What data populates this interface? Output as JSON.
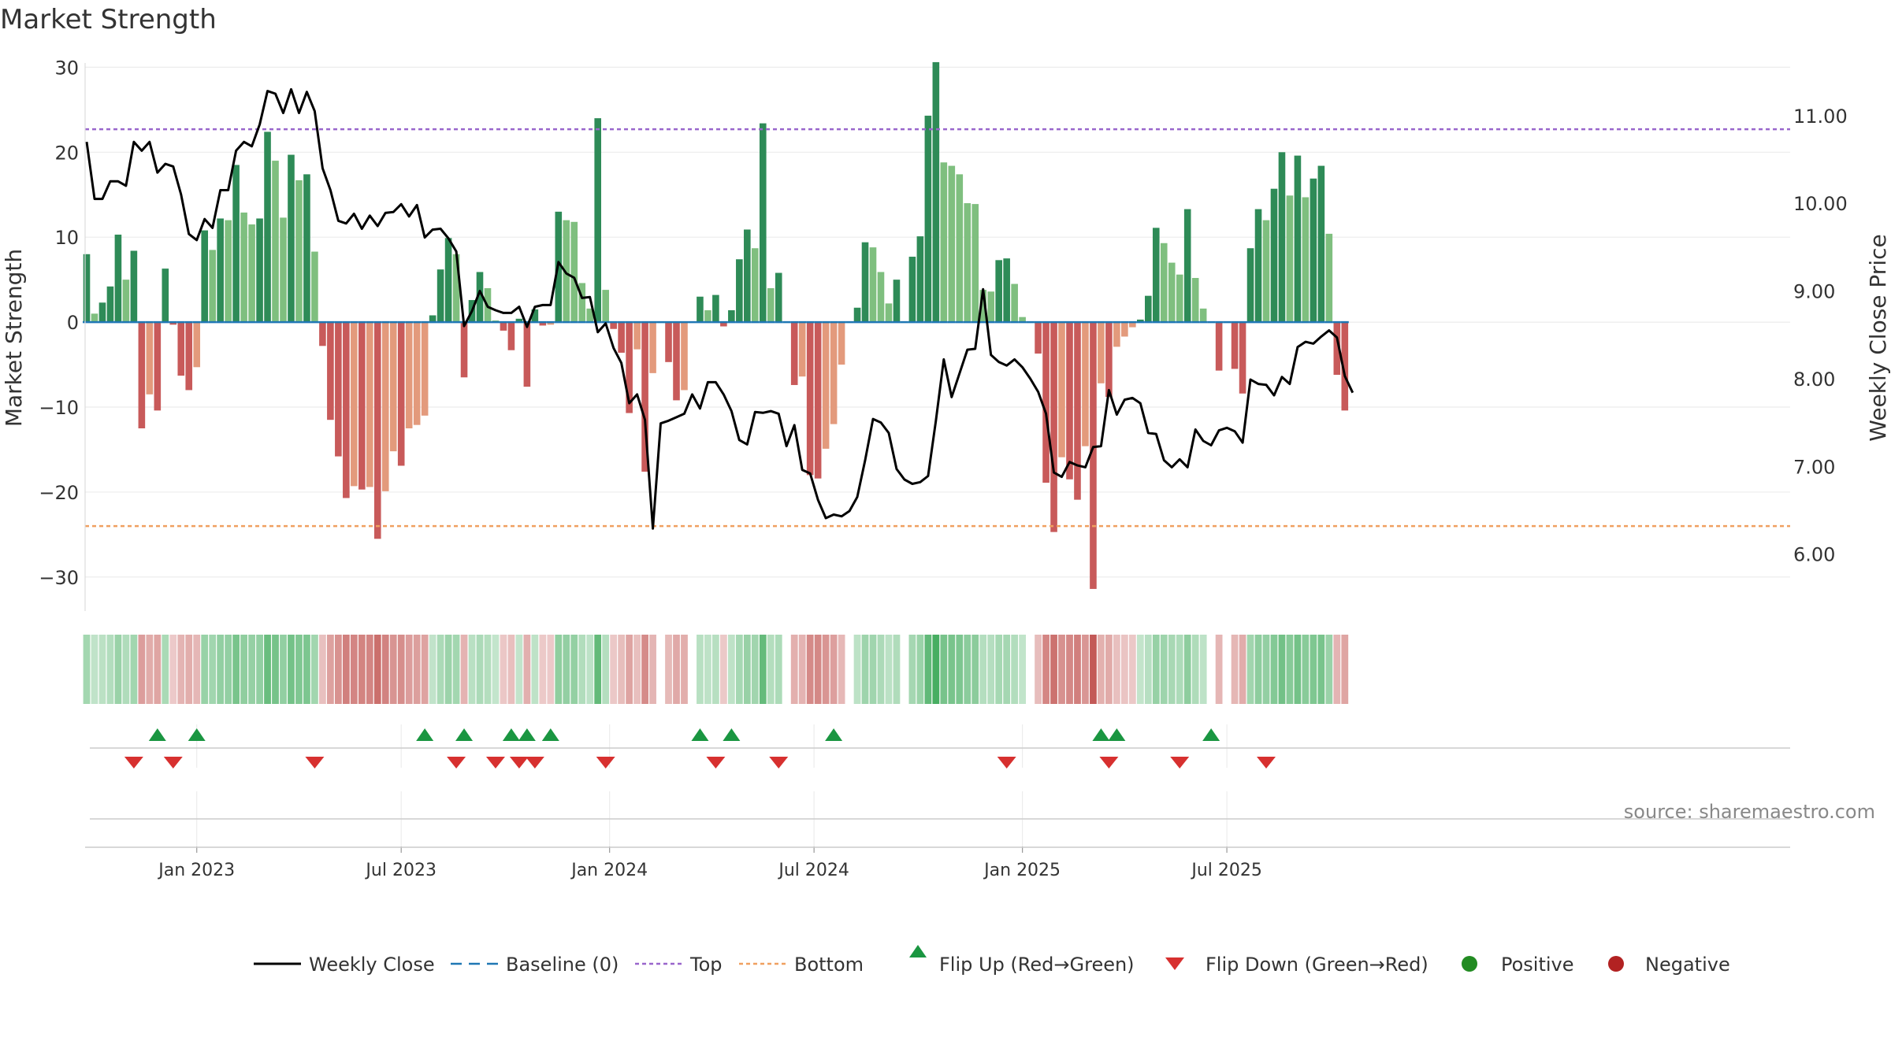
{
  "chart_data": {
    "type": "bar+line",
    "title": "Market Strength",
    "ylabel_left": "Market Strength",
    "ylabel_right": "Weekly Close Price",
    "source": "source: sharemaestro.com",
    "ylim_left": [
      -34,
      30.5
    ],
    "ylim_right": [
      5.35,
      11.6
    ],
    "yticks_left": [
      30,
      20,
      10,
      0,
      -10,
      -20,
      -30
    ],
    "yticks_left_labels": [
      "30",
      "20",
      "10",
      "0",
      "−10",
      "−20",
      "−30"
    ],
    "yticks_right": [
      11,
      10,
      9,
      8,
      7,
      6
    ],
    "yticks_right_labels": [
      "11.00",
      "10.00",
      "9.00",
      "8.00",
      "7.00",
      "6.00"
    ],
    "x_start_week": -14,
    "xticks": [
      {
        "week": 0,
        "label": "Jan 2023"
      },
      {
        "week": 26,
        "label": "Jul 2023"
      },
      {
        "week": 52.5,
        "label": "Jan 2024"
      },
      {
        "week": 78.5,
        "label": "Jul 2024"
      },
      {
        "week": 105,
        "label": "Jan 2025"
      },
      {
        "week": 131,
        "label": "Jul 2025"
      }
    ],
    "top_level": 22.7,
    "bottom_level": -24,
    "strength": [
      8,
      1,
      2.3,
      4.2,
      10.3,
      5,
      8.4,
      -12.5,
      -8.5,
      -10.4,
      6.3,
      -0.3,
      -6.3,
      -8,
      -5.3,
      10.8,
      8.5,
      12.2,
      12,
      18.5,
      12.9,
      11.5,
      12.2,
      22.4,
      19,
      12.3,
      19.7,
      16.7,
      17.4,
      8.3,
      -2.8,
      -11.5,
      -15.8,
      -20.7,
      -19.3,
      -19.7,
      -19.4,
      -25.5,
      -19.9,
      -15.2,
      -16.9,
      -12.5,
      -12.1,
      -11,
      0.8,
      6.2,
      9.9,
      8,
      -6.5,
      2.6,
      5.9,
      4,
      0.2,
      -1,
      -3.3,
      0.4,
      -7.6,
      1.5,
      -0.4,
      -0.3,
      13,
      12,
      11.8,
      4.6,
      1.6,
      24,
      3.8,
      -0.8,
      -3.6,
      -10.7,
      -3.2,
      -17.6,
      -6,
      0,
      -4.7,
      -9.2,
      -8,
      0,
      3,
      1.4,
      3.2,
      -0.5,
      1.4,
      7.4,
      10.9,
      8.7,
      23.4,
      4,
      5.8,
      0,
      -7.4,
      -6.4,
      -18,
      -18.4,
      -14.9,
      -12,
      -5,
      0,
      1.7,
      9.4,
      8.8,
      5.9,
      2.2,
      5,
      0,
      7.7,
      10.1,
      24.3,
      30.6,
      18.8,
      18.4,
      17.4,
      14,
      13.9,
      3.8,
      3.6,
      7.3,
      7.5,
      4.5,
      0.6,
      0,
      -3.7,
      -18.9,
      -24.7,
      -15.9,
      -18.5,
      -20.9,
      -14.6,
      -31.4,
      -7.2,
      -8.8,
      -2.9,
      -1.7,
      -0.6,
      0.3,
      3.1,
      11.1,
      9.3,
      7,
      5.6,
      13.3,
      5.2,
      1.6,
      0,
      -5.7,
      0,
      -5.5,
      -8.4,
      8.7,
      13.3,
      12,
      15.7,
      20,
      14.9,
      19.6,
      14.7,
      16.9,
      18.4,
      10.4,
      -6.2,
      -10.4
    ],
    "close": [
      10.7,
      10.05,
      10.05,
      10.25,
      10.25,
      10.2,
      10.7,
      10.6,
      10.7,
      10.35,
      10.45,
      10.42,
      10.1,
      9.65,
      9.58,
      9.82,
      9.72,
      10.15,
      10.15,
      10.6,
      10.7,
      10.65,
      10.9,
      11.28,
      11.25,
      11.03,
      11.3,
      11.03,
      11.27,
      11.05,
      10.4,
      10.15,
      9.8,
      9.77,
      9.88,
      9.71,
      9.86,
      9.74,
      9.89,
      9.9,
      9.99,
      9.85,
      9.98,
      9.61,
      9.7,
      9.71,
      9.6,
      9.45,
      8.6,
      8.77,
      9.0,
      8.82,
      8.78,
      8.75,
      8.75,
      8.82,
      8.59,
      8.82,
      8.84,
      8.84,
      9.33,
      9.2,
      9.15,
      8.92,
      8.93,
      8.53,
      8.63,
      8.35,
      8.18,
      7.72,
      7.82,
      7.53,
      6.29,
      7.49,
      7.52,
      7.56,
      7.6,
      7.82,
      7.66,
      7.96,
      7.96,
      7.82,
      7.63,
      7.3,
      7.25,
      7.62,
      7.61,
      7.63,
      7.6,
      7.23,
      7.47,
      6.96,
      6.92,
      6.62,
      6.41,
      6.45,
      6.43,
      6.49,
      6.65,
      7.07,
      7.54,
      7.5,
      7.38,
      6.97,
      6.85,
      6.8,
      6.82,
      6.89,
      7.52,
      8.22,
      7.79,
      8.06,
      8.33,
      8.34,
      9.02,
      8.27,
      8.19,
      8.15,
      8.22,
      8.13,
      8.0,
      7.85,
      7.6,
      6.93,
      6.88,
      7.05,
      7.01,
      6.99,
      7.22,
      7.23,
      7.87,
      7.59,
      7.76,
      7.78,
      7.72,
      7.38,
      7.37,
      7.07,
      6.99,
      7.08,
      6.99,
      7.42,
      7.29,
      7.24,
      7.41,
      7.44,
      7.4,
      7.27,
      7.99,
      7.94,
      7.93,
      7.81,
      8.02,
      7.94,
      8.36,
      8.42,
      8.4,
      8.48,
      8.55,
      8.47,
      8.03,
      7.84
    ],
    "flip_up_weeks": [
      -5,
      0,
      29,
      34,
      40,
      42,
      45,
      64,
      68,
      81,
      115,
      117,
      129
    ],
    "flip_down_weeks": [
      -8,
      -3,
      15,
      33,
      38,
      41,
      43,
      52,
      66,
      74,
      103,
      116,
      125,
      136
    ],
    "legend": [
      {
        "name": "Weekly Close",
        "kind": "line"
      },
      {
        "name": "Baseline (0)",
        "kind": "dashed"
      },
      {
        "name": "Top",
        "kind": "dotted-top"
      },
      {
        "name": "Bottom",
        "kind": "dotted-bottom"
      },
      {
        "name": "Flip Up (Red→Green)",
        "kind": "tri-up"
      },
      {
        "name": "Flip Down (Green→Red)",
        "kind": "tri-down"
      },
      {
        "name": "Positive",
        "kind": "dot-pos"
      },
      {
        "name": "Negative",
        "kind": "dot-neg"
      }
    ],
    "colors": {
      "pos_dark": "#2e8b57",
      "pos_light": "#7fbf7f",
      "neg_dark": "#c85a5a",
      "neg_light": "#e39a7c",
      "close_line": "#000000",
      "top_line": "#9966cc",
      "bottom_line": "#f0a060",
      "baseline": "#1f77b4",
      "flip_up": "#1a9641",
      "flip_down": "#d7302f",
      "legend_pos": "#228b22",
      "legend_neg": "#b22222"
    }
  }
}
